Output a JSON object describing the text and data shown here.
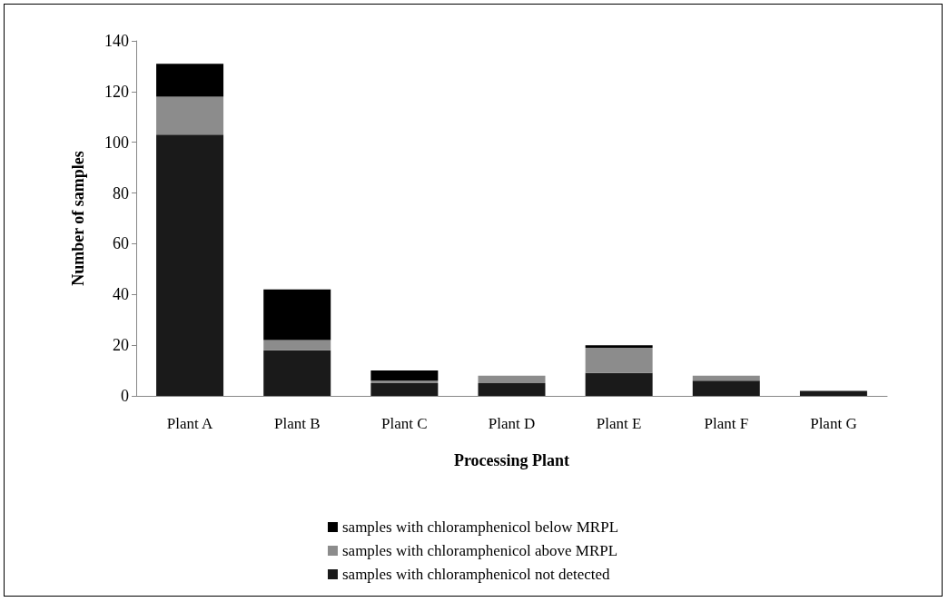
{
  "chart_data": {
    "type": "bar",
    "stacked": true,
    "xlabel": "Processing Plant",
    "ylabel": "Number of samples",
    "categories": [
      "Plant A",
      "Plant B",
      "Plant C",
      "Plant D",
      "Plant E",
      "Plant F",
      "Plant G"
    ],
    "series": [
      {
        "name": "samples with chloramphenicol not detected",
        "color": "#1a1a1a",
        "values": [
          103,
          18,
          5,
          5,
          9,
          6,
          2
        ]
      },
      {
        "name": "samples with chloramphenicol above MRPL",
        "color": "#8c8c8c",
        "values": [
          15,
          4,
          1,
          3,
          10,
          2,
          0
        ]
      },
      {
        "name": "samples with chloramphenicol below MRPL",
        "color": "#000000",
        "values": [
          13,
          20,
          4,
          0,
          1,
          0,
          0
        ]
      }
    ],
    "ylim": [
      0,
      140
    ],
    "yticks": [
      0,
      20,
      40,
      60,
      80,
      100,
      120,
      140
    ],
    "grid": false,
    "legend": "bottom"
  }
}
